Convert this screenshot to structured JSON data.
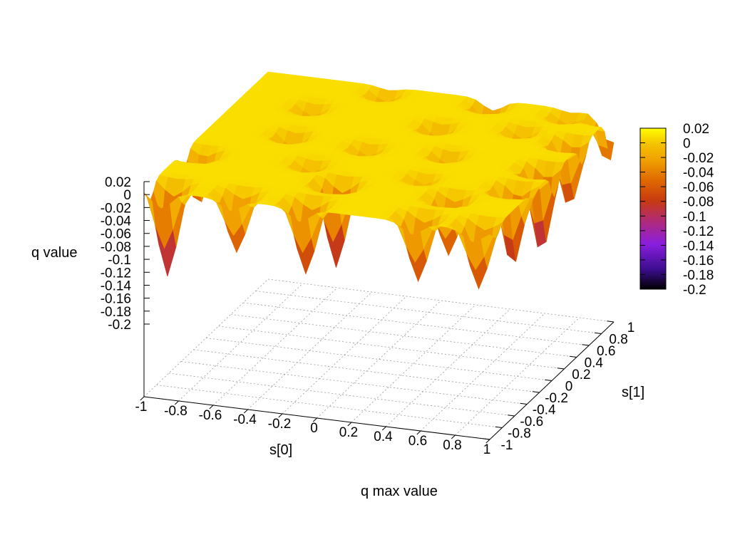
{
  "chart_data": {
    "type": "surface",
    "title": "q max value",
    "xlabel": "s[0]",
    "ylabel": "s[1]",
    "zlabel": "q value",
    "xlim": [
      -1,
      1
    ],
    "ylim": [
      -1,
      1
    ],
    "zlim": [
      -0.2,
      0.02
    ],
    "x_ticks": [
      "-1",
      "-0.8",
      "-0.6",
      "-0.4",
      "-0.2",
      "0",
      "0.2",
      "0.4",
      "0.6",
      "0.8",
      "1"
    ],
    "y_ticks": [
      "-1",
      "-0.8",
      "-0.6",
      "-0.4",
      "-0.2",
      "0",
      "0.2",
      "0.4",
      "0.6",
      "0.8",
      "1"
    ],
    "z_ticks": [
      "0.02",
      "0",
      "-0.02",
      "-0.04",
      "-0.06",
      "-0.08",
      "-0.1",
      "-0.12",
      "-0.14",
      "-0.16",
      "-0.18",
      "-0.2"
    ],
    "grid": true,
    "colorbox": {
      "range": [
        -0.2,
        0.02
      ],
      "ticks": [
        "0.02",
        "0",
        "-0.02",
        "-0.04",
        "-0.06",
        "-0.08",
        "-0.1",
        "-0.12",
        "-0.14",
        "-0.16",
        "-0.18",
        "-0.2"
      ],
      "palette": [
        "#000000",
        "#3a0d8c",
        "#8a1ee0",
        "#b02a7a",
        "#c83a10",
        "#e06a00",
        "#f0a000",
        "#f5c200",
        "#ffff00"
      ]
    },
    "surface": {
      "baseline_value": 0,
      "dips": [
        {
          "x": -0.9,
          "y": -0.9,
          "value": -0.14
        },
        {
          "x": -0.92,
          "y": -0.35,
          "value": -0.08
        },
        {
          "x": -0.5,
          "y": -0.9,
          "value": -0.09
        },
        {
          "x": -0.1,
          "y": -0.9,
          "value": -0.11
        },
        {
          "x": -0.05,
          "y": -0.55,
          "value": -0.13
        },
        {
          "x": 0.55,
          "y": -0.9,
          "value": -0.1
        },
        {
          "x": 0.9,
          "y": -0.9,
          "value": -0.1
        },
        {
          "x": 0.6,
          "y": -0.55,
          "value": -0.09
        },
        {
          "x": 0.88,
          "y": -0.3,
          "value": -0.12
        },
        {
          "x": 0.92,
          "y": 0.05,
          "value": -0.13
        },
        {
          "x": 0.92,
          "y": 0.5,
          "value": -0.1
        },
        {
          "x": 0.98,
          "y": 0.95,
          "value": -0.07
        },
        {
          "x": -0.55,
          "y": 0.1,
          "value": -0.04
        },
        {
          "x": -0.1,
          "y": 0.05,
          "value": -0.03
        },
        {
          "x": 0.35,
          "y": 0.1,
          "value": -0.035
        },
        {
          "x": -0.6,
          "y": 0.55,
          "value": -0.03
        },
        {
          "x": 0.15,
          "y": 0.5,
          "value": -0.04
        },
        {
          "x": 0.6,
          "y": 0.6,
          "value": -0.03
        },
        {
          "x": -0.3,
          "y": 0.9,
          "value": -0.03
        },
        {
          "x": 0.3,
          "y": 0.92,
          "value": -0.05
        },
        {
          "x": 0.75,
          "y": 0.9,
          "value": -0.03
        },
        {
          "x": -0.3,
          "y": -0.3,
          "value": -0.03
        },
        {
          "x": 0.35,
          "y": -0.3,
          "value": -0.025
        }
      ]
    }
  }
}
